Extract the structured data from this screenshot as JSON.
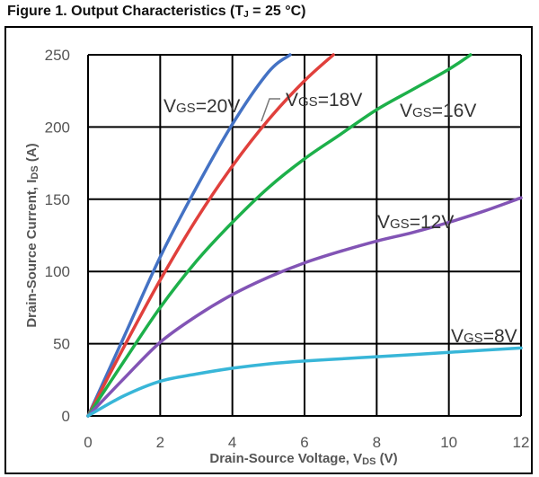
{
  "figure": {
    "title_prefix": "Figure 1. Output Characteristics (T",
    "title_sub": "J",
    "title_suffix": " = 25 °C)"
  },
  "chart_data": {
    "type": "line",
    "xlabel_main": "Drain-Source Voltage, V",
    "xlabel_sub": "DS",
    "xlabel_unit": " (V)",
    "ylabel_main": "Drain-Source Current, I",
    "ylabel_sub": "DS",
    "ylabel_unit": " (A)",
    "xlim": [
      0,
      12
    ],
    "ylim": [
      0,
      250
    ],
    "xticks": [
      0,
      2,
      4,
      6,
      8,
      10,
      12
    ],
    "yticks": [
      0,
      50,
      100,
      150,
      200,
      250
    ],
    "grid": true,
    "series": [
      {
        "name": "VGS=20V",
        "label_main": "V",
        "label_sub": "GS",
        "label_tail": "=20V",
        "color": "#4472C4",
        "x": [
          0,
          1,
          2,
          3,
          4,
          5,
          5.6
        ],
        "y": [
          0,
          55,
          110,
          158,
          202,
          238,
          250
        ]
      },
      {
        "name": "VGS=18V",
        "label_main": "V",
        "label_sub": "GS",
        "label_tail": "=18V",
        "color": "#E0403C",
        "x": [
          0,
          1,
          2,
          3,
          4,
          5,
          6,
          6.8
        ],
        "y": [
          0,
          48,
          94,
          136,
          173,
          205,
          232,
          250
        ]
      },
      {
        "name": "VGS=16V",
        "label_main": "V",
        "label_sub": "GS",
        "label_tail": "=16V",
        "color": "#1DB04A",
        "x": [
          0,
          1,
          2,
          3,
          4,
          5,
          6,
          7,
          8,
          9,
          10,
          10.6
        ],
        "y": [
          0,
          38,
          75,
          107,
          134,
          158,
          178,
          195,
          212,
          226,
          240,
          250
        ]
      },
      {
        "name": "VGS=12V",
        "label_main": "V",
        "label_sub": "GS",
        "label_tail": "=12V",
        "color": "#8254B5",
        "x": [
          0,
          1,
          2,
          3,
          4,
          5,
          6,
          7,
          8,
          9,
          10,
          11,
          12
        ],
        "y": [
          0,
          26,
          51,
          69,
          84,
          96,
          106,
          114,
          121,
          127,
          134,
          142,
          151
        ]
      },
      {
        "name": "VGS=8V",
        "label_main": "V",
        "label_sub": "GS",
        "label_tail": "=8V",
        "color": "#38B6D8",
        "x": [
          0,
          1,
          2,
          3,
          4,
          5,
          6,
          7,
          8,
          9,
          10,
          11,
          12
        ],
        "y": [
          0,
          14,
          24,
          29,
          33,
          36,
          38,
          39.5,
          41,
          42.5,
          44,
          45.5,
          47
        ]
      }
    ]
  }
}
